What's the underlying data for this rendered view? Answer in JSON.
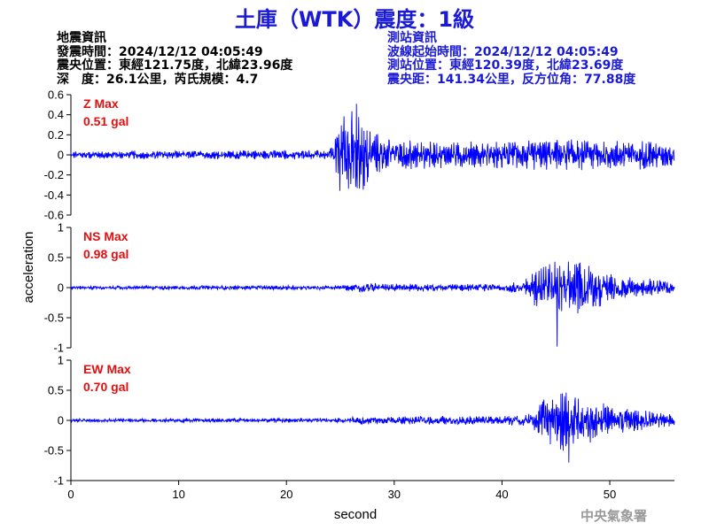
{
  "title": "土庫（WTK）震度：1級",
  "quake_info": {
    "heading": "地震資訊",
    "origin_time": "發震時間：2024/12/12 04:05:49",
    "epicenter": "震央位置：東經121.75度，北緯23.96度",
    "depth_mag": "深　度：26.1公里，芮氏規模：4.7"
  },
  "station_info": {
    "heading": "測站資訊",
    "wave_start": "波線起始時間：2024/12/12 04:05:49",
    "station_loc": "測站位置：東經120.39度，北緯23.69度",
    "distance": "震央距：141.34公里，反方位角：77.88度"
  },
  "organization": "中央氣象署",
  "colors": {
    "title": "#1a1ad6",
    "trace": "#0000ff",
    "max_label": "#e01010",
    "station_text": "#1a1ad6"
  },
  "chart_data": [
    {
      "type": "line",
      "name": "Z",
      "max_label": "Z Max",
      "max_value": "0.51 gal",
      "ylim": [
        -0.6,
        0.6
      ],
      "yticks": [
        "0.6",
        "0.4",
        "0.2",
        "0",
        "-0.2",
        "-0.4",
        "-0.6"
      ],
      "ytick_values": [
        0.6,
        0.4,
        0.2,
        0,
        -0.2,
        -0.4,
        -0.6
      ],
      "envelope": {
        "x": [
          0,
          24,
          25,
          26,
          27,
          28,
          29,
          31,
          33,
          35,
          38,
          42,
          46,
          50,
          54,
          56
        ],
        "amp": [
          0.04,
          0.05,
          0.38,
          0.45,
          0.42,
          0.25,
          0.18,
          0.15,
          0.14,
          0.13,
          0.14,
          0.15,
          0.16,
          0.15,
          0.15,
          0.12
        ]
      },
      "peak": {
        "x": 26.5,
        "value": 0.51
      }
    },
    {
      "type": "line",
      "name": "NS",
      "max_label": "NS Max",
      "max_value": "0.98 gal",
      "ylim": [
        -1,
        1
      ],
      "yticks": [
        "1",
        "0.5",
        "0",
        "-0.5",
        "-1"
      ],
      "ytick_values": [
        1,
        0.5,
        0,
        -0.5,
        -1
      ],
      "envelope": {
        "x": [
          0,
          25,
          27,
          30,
          35,
          40,
          42,
          43,
          44,
          45,
          46,
          47,
          48,
          50,
          52,
          54,
          56
        ],
        "amp": [
          0.03,
          0.04,
          0.08,
          0.07,
          0.06,
          0.07,
          0.12,
          0.3,
          0.45,
          0.5,
          0.45,
          0.45,
          0.4,
          0.25,
          0.2,
          0.15,
          0.12
        ]
      },
      "peak": {
        "x": 45.1,
        "value": -0.98
      }
    },
    {
      "type": "line",
      "name": "EW",
      "max_label": "EW Max",
      "max_value": "0.70 gal",
      "ylim": [
        -1,
        1
      ],
      "yticks": [
        "1",
        "0.5",
        "0",
        "-0.5",
        "-1"
      ],
      "ytick_values": [
        1,
        0.5,
        0,
        -0.5,
        -1
      ],
      "envelope": {
        "x": [
          0,
          25,
          27,
          30,
          35,
          40,
          42,
          43,
          44,
          45,
          46,
          47,
          48,
          50,
          52,
          54,
          56
        ],
        "amp": [
          0.03,
          0.04,
          0.07,
          0.07,
          0.07,
          0.07,
          0.1,
          0.2,
          0.4,
          0.5,
          0.55,
          0.45,
          0.4,
          0.25,
          0.2,
          0.15,
          0.12
        ]
      },
      "peak": {
        "x": 46.2,
        "value": -0.7
      }
    }
  ],
  "xaxis": {
    "label": "second",
    "xlim": [
      0,
      56
    ],
    "ticks": [
      "0",
      "10",
      "20",
      "30",
      "40",
      "50"
    ],
    "tick_values": [
      0,
      10,
      20,
      30,
      40,
      50
    ]
  },
  "ylabel": "acceleration"
}
